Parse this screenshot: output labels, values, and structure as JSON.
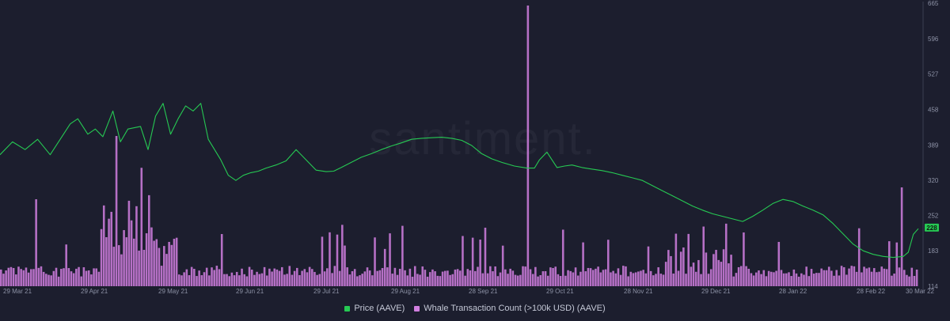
{
  "watermark": "santiment.",
  "chart_data": {
    "type": "line",
    "title": "",
    "x": [
      "29 Mar 21",
      "29 Apr 21",
      "29 May 21",
      "29 Jun 21",
      "29 Jul 21",
      "29 Aug 21",
      "28 Sep 21",
      "29 Oct 21",
      "28 Nov 21",
      "29 Dec 21",
      "28 Jan 22",
      "28 Feb 22",
      "30 Mar 22"
    ],
    "xlim": [
      0,
      366
    ],
    "ylim": [
      114,
      665
    ],
    "y_ticks": [
      114,
      183,
      252,
      320,
      389,
      458,
      527,
      596,
      665
    ],
    "axis_position": "right",
    "grid": false,
    "legend_placement": "bottom-center",
    "current_price": "228",
    "series": [
      {
        "name": "Price (AAVE)",
        "type": "line",
        "color": "#26c953",
        "points": [
          [
            0,
            370
          ],
          [
            5,
            395
          ],
          [
            10,
            380
          ],
          [
            15,
            400
          ],
          [
            20,
            370
          ],
          [
            28,
            430
          ],
          [
            31,
            440
          ],
          [
            35,
            410
          ],
          [
            38,
            420
          ],
          [
            41,
            405
          ],
          [
            45,
            455
          ],
          [
            48,
            395
          ],
          [
            51,
            420
          ],
          [
            56,
            425
          ],
          [
            59,
            380
          ],
          [
            62,
            445
          ],
          [
            65,
            470
          ],
          [
            68,
            410
          ],
          [
            71,
            440
          ],
          [
            74,
            465
          ],
          [
            77,
            455
          ],
          [
            80,
            470
          ],
          [
            83,
            400
          ],
          [
            88,
            360
          ],
          [
            91,
            330
          ],
          [
            94,
            320
          ],
          [
            97,
            330
          ],
          [
            100,
            335
          ],
          [
            103,
            338
          ],
          [
            106,
            344
          ],
          [
            110,
            350
          ],
          [
            114,
            358
          ],
          [
            118,
            380
          ],
          [
            122,
            360
          ],
          [
            126,
            340
          ],
          [
            130,
            337
          ],
          [
            133,
            338
          ],
          [
            136,
            345
          ],
          [
            140,
            355
          ],
          [
            144,
            365
          ],
          [
            148,
            372
          ],
          [
            152,
            380
          ],
          [
            156,
            387
          ],
          [
            160,
            393
          ],
          [
            164,
            400
          ],
          [
            168,
            402
          ],
          [
            172,
            403
          ],
          [
            176,
            404
          ],
          [
            180,
            402
          ],
          [
            184,
            398
          ],
          [
            188,
            388
          ],
          [
            192,
            372
          ],
          [
            196,
            362
          ],
          [
            200,
            355
          ],
          [
            205,
            348
          ],
          [
            210,
            344
          ],
          [
            213,
            344
          ],
          [
            215,
            360
          ],
          [
            218,
            375
          ],
          [
            222,
            345
          ],
          [
            225,
            348
          ],
          [
            228,
            350
          ],
          [
            232,
            345
          ],
          [
            236,
            342
          ],
          [
            240,
            339
          ],
          [
            244,
            335
          ],
          [
            248,
            330
          ],
          [
            252,
            325
          ],
          [
            256,
            320
          ],
          [
            260,
            310
          ],
          [
            264,
            300
          ],
          [
            268,
            290
          ],
          [
            272,
            280
          ],
          [
            276,
            270
          ],
          [
            280,
            262
          ],
          [
            284,
            255
          ],
          [
            288,
            250
          ],
          [
            292,
            245
          ],
          [
            296,
            240
          ],
          [
            300,
            250
          ],
          [
            304,
            262
          ],
          [
            308,
            275
          ],
          [
            312,
            283
          ],
          [
            316,
            279
          ],
          [
            320,
            270
          ],
          [
            324,
            262
          ],
          [
            328,
            253
          ],
          [
            332,
            236
          ],
          [
            336,
            216
          ],
          [
            340,
            196
          ],
          [
            344,
            183
          ],
          [
            348,
            176
          ],
          [
            352,
            172
          ],
          [
            356,
            170
          ],
          [
            360,
            172
          ],
          [
            362,
            180
          ],
          [
            364,
            215
          ],
          [
            366,
            226
          ]
        ]
      },
      {
        "name": "Whale Transaction Count (>100k USD) (AAVE)",
        "type": "bar",
        "color": "#d17fe0"
      }
    ]
  },
  "legend": {
    "price_label": "Price (AAVE)",
    "price_color": "#26c953",
    "whale_label": "Whale Transaction Count (>100k USD) (AAVE)",
    "whale_color": "#d17fe0"
  }
}
